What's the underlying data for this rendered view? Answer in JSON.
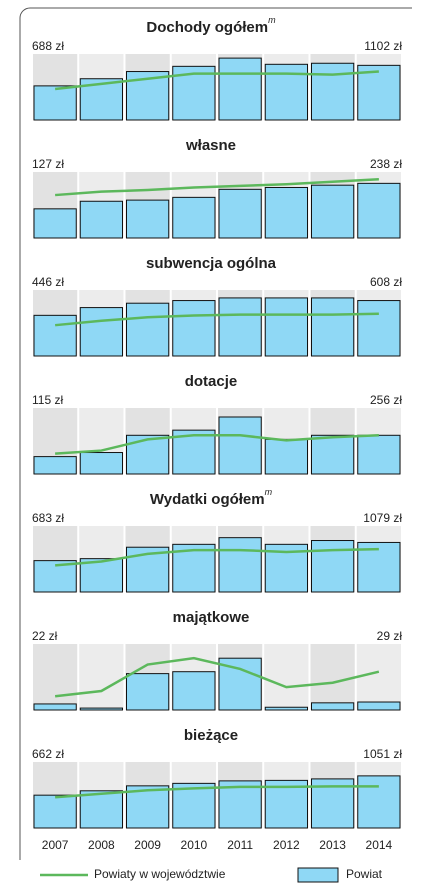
{
  "chart_data": [
    {
      "type": "bar",
      "title": "Dochody ogółem",
      "title_sup": "m",
      "ylim": [
        0,
        1250
      ],
      "series": [
        {
          "name": "Powiat",
          "color": "#8fd8f5",
          "values": [
            688,
            832,
            977,
            1082,
            1248,
            1123,
            1144,
            1102
          ],
          "value_labels": [
            "688 zł",
            null,
            null,
            null,
            null,
            null,
            null,
            "1102 zł"
          ]
        },
        {
          "name": "Powiaty w województwie",
          "color": "#5cb85c",
          "values": [
            624,
            728,
            832,
            936,
            936,
            936,
            915,
            978
          ]
        }
      ]
    },
    {
      "type": "bar",
      "title": "własne",
      "ylim": [
        0,
        270
      ],
      "series": [
        {
          "color": "#8fd8f5",
          "values": [
            127,
            160,
            165,
            177,
            212,
            220,
            230,
            238
          ],
          "value_labels": [
            "127 zł",
            null,
            null,
            null,
            null,
            null,
            null,
            "238 zł"
          ]
        },
        {
          "color": "#5cb85c",
          "values": [
            187,
            202,
            209,
            220,
            227,
            234,
            245,
            256
          ]
        }
      ]
    },
    {
      "type": "bar",
      "title": "subwencja ogólna",
      "ylim": [
        0,
        680
      ],
      "series": [
        {
          "color": "#8fd8f5",
          "values": [
            446,
            531,
            579,
            608,
            637,
            637,
            637,
            608
          ],
          "value_labels": [
            "446 zł",
            null,
            null,
            null,
            null,
            null,
            null,
            "608 zł"
          ]
        },
        {
          "color": "#5cb85c",
          "values": [
            338,
            386,
            425,
            444,
            454,
            454,
            454,
            463
          ]
        }
      ]
    },
    {
      "type": "bar",
      "title": "dotacje",
      "ylim": [
        0,
        410
      ],
      "series": [
        {
          "color": "#8fd8f5",
          "values": [
            115,
            142,
            256,
            290,
            377,
            229,
            256,
            256
          ],
          "value_labels": [
            "115 zł",
            null,
            null,
            null,
            null,
            null,
            null,
            "256 zł"
          ]
        },
        {
          "color": "#5cb85c",
          "values": [
            135,
            155,
            229,
            256,
            256,
            222,
            243,
            256
          ]
        }
      ]
    },
    {
      "type": "bar",
      "title": "Wydatki ogółem",
      "title_sup": "m",
      "ylim": [
        0,
        1350
      ],
      "series": [
        {
          "color": "#8fd8f5",
          "values": [
            683,
            726,
            975,
            1038,
            1183,
            1038,
            1121,
            1079
          ],
          "value_labels": [
            "683 zł",
            null,
            null,
            null,
            null,
            null,
            null,
            "1079 zł"
          ]
        },
        {
          "color": "#5cb85c",
          "values": [
            581,
            664,
            830,
            913,
            913,
            872,
            913,
            934
          ]
        }
      ]
    },
    {
      "type": "bar",
      "title": "majątkowe",
      "ylim": [
        0,
        225
      ],
      "series": [
        {
          "color": "#8fd8f5",
          "values": [
            22,
            7,
            132,
            139,
            188,
            10,
            26,
            29
          ],
          "value_labels": [
            "22 zł",
            null,
            null,
            null,
            null,
            null,
            null,
            "29 zł"
          ]
        },
        {
          "color": "#5cb85c",
          "values": [
            50,
            69,
            165,
            188,
            149,
            83,
            99,
            139
          ]
        }
      ]
    },
    {
      "type": "bar",
      "title": "bieżące",
      "ylim": [
        0,
        1250
      ],
      "categories": [
        "2007",
        "2008",
        "2009",
        "2010",
        "2011",
        "2012",
        "2013",
        "2014"
      ],
      "series": [
        {
          "color": "#8fd8f5",
          "values": [
            662,
            750,
            850,
            900,
            950,
            960,
            990,
            1051
          ],
          "value_labels": [
            "662 zł",
            null,
            null,
            null,
            null,
            null,
            null,
            "1051 zł"
          ]
        },
        {
          "color": "#5cb85c",
          "values": [
            620,
            690,
            760,
            800,
            830,
            830,
            840,
            840
          ]
        }
      ]
    }
  ]
}
